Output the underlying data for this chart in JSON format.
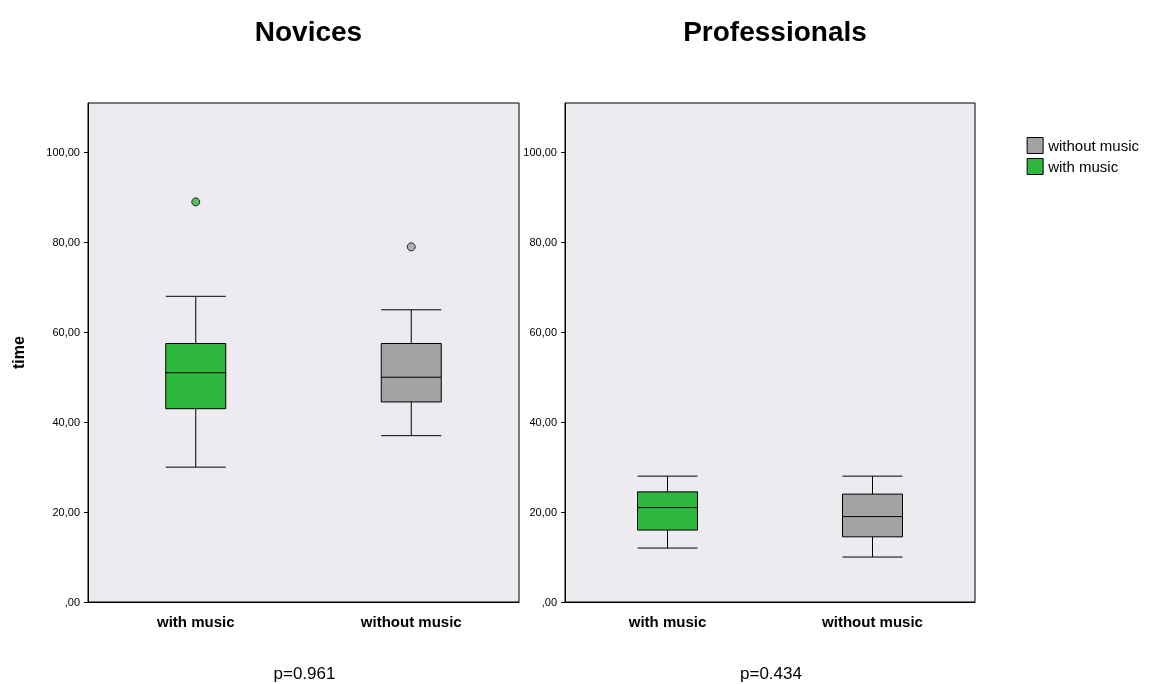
{
  "chart_data": [
    {
      "type": "box",
      "title": "Novices",
      "ylabel": "time",
      "categories": [
        "with music",
        "without music"
      ],
      "ylim": [
        0,
        111
      ],
      "yticks": [
        {
          "value": 0,
          "label": ",00"
        },
        {
          "value": 20,
          "label": "20,00"
        },
        {
          "value": 40,
          "label": "40,00"
        },
        {
          "value": 60,
          "label": "60,00"
        },
        {
          "value": 80,
          "label": "80,00"
        },
        {
          "value": 100,
          "label": "100,00"
        }
      ],
      "grid": false,
      "legend": false,
      "annotations": [
        "p=0.961"
      ],
      "series": [
        {
          "color": "#a3a3a3",
          "boxes": [
            null,
            {
              "low": 37,
              "q1": 44.5,
              "median": 50,
              "q3": 57.5,
              "high": 65,
              "outliers": [
                79
              ]
            }
          ]
        },
        {
          "color": "#2db83d",
          "boxes": [
            {
              "low": 30,
              "q1": 43,
              "median": 51,
              "q3": 57.5,
              "high": 68,
              "outliers": [
                89
              ]
            },
            null
          ]
        }
      ]
    },
    {
      "type": "box",
      "title": "Professionals",
      "categories": [
        "with music",
        "without music"
      ],
      "ylim": [
        0,
        111
      ],
      "yticks": [
        {
          "value": 0,
          "label": ",00"
        },
        {
          "value": 20,
          "label": "20,00"
        },
        {
          "value": 40,
          "label": "40,00"
        },
        {
          "value": 60,
          "label": "60,00"
        },
        {
          "value": 80,
          "label": "80,00"
        },
        {
          "value": 100,
          "label": "100,00"
        }
      ],
      "grid": false,
      "legend": "top right",
      "annotations": [
        "p=0.434"
      ],
      "series": [
        {
          "name": "without music",
          "color": "#a3a3a3",
          "boxes": [
            null,
            {
              "low": 10,
              "q1": 14.5,
              "median": 19,
              "q3": 24,
              "high": 28
            }
          ]
        },
        {
          "name": "with music",
          "color": "#2db83d",
          "boxes": [
            {
              "low": 12,
              "q1": 16,
              "median": 21,
              "q3": 24.5,
              "high": 28
            },
            null
          ]
        }
      ]
    }
  ]
}
